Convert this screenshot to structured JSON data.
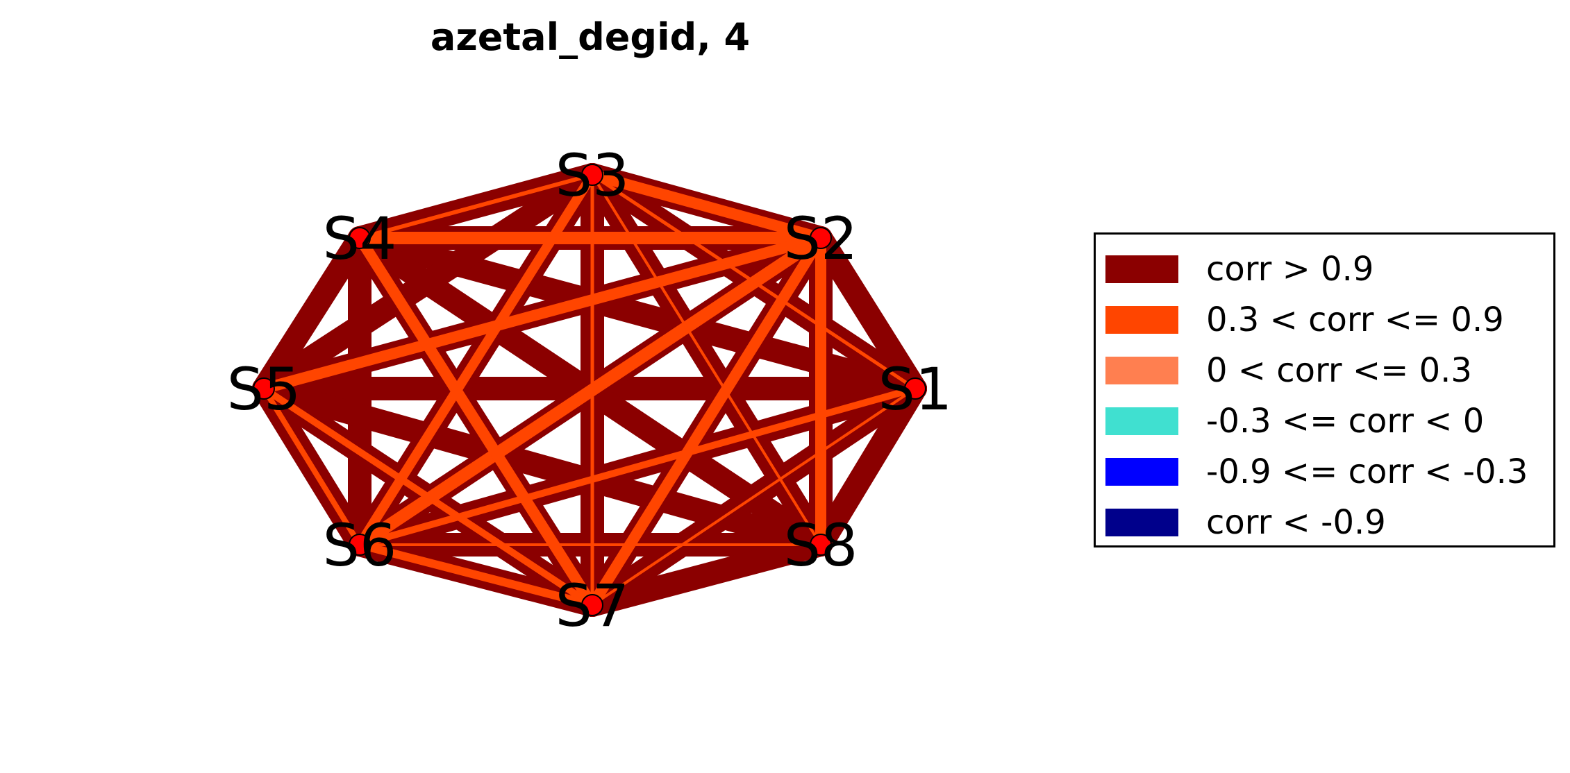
{
  "title": "azetal_degid, 4",
  "nodes": [
    "S1",
    "S2",
    "S3",
    "S4",
    "S5",
    "S6",
    "S7",
    "S8"
  ],
  "legend": [
    {
      "label": "corr > 0.9",
      "color": "#8b0000"
    },
    {
      "label": "0.3 < corr <= 0.9",
      "color": "#ff4500"
    },
    {
      "label": "0 < corr <= 0.3",
      "color": "#ff7f50"
    },
    {
      "label": "-0.3 <= corr < 0",
      "color": "#40e0d0"
    },
    {
      "label": "-0.9 <= corr < -0.3",
      "color": "#0000ff"
    },
    {
      "label": "corr < -0.9",
      "color": "#00008b"
    }
  ],
  "node_color": "#ff0000",
  "edge_colors": {
    "strong": "#8b0000",
    "medium": "#ff4500"
  }
}
